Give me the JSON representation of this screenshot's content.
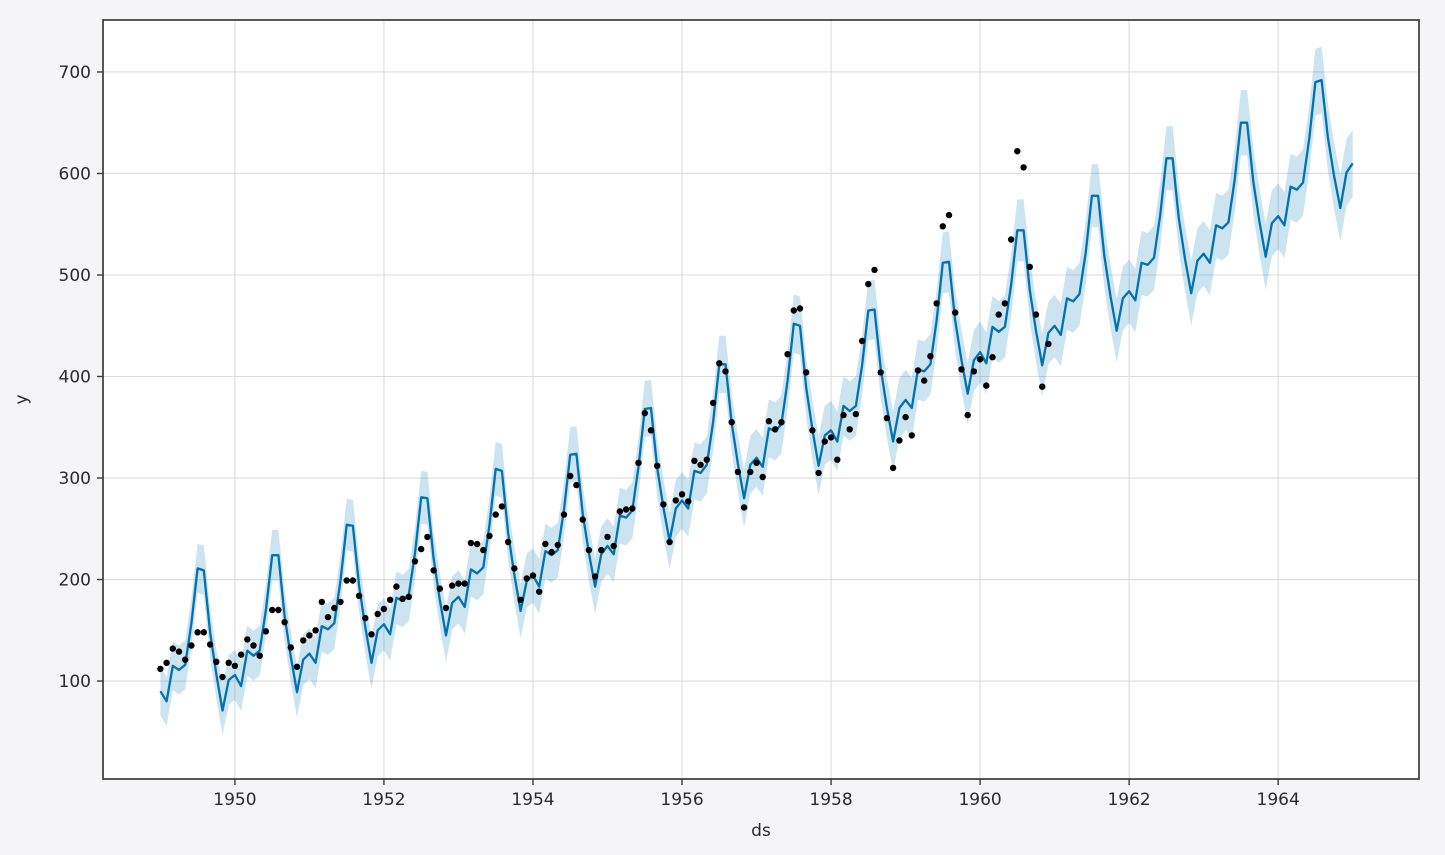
{
  "page": {
    "background_color": "#f5f5f7",
    "plot_background_color": "#ffffff"
  },
  "chart_data": {
    "type": "line",
    "title": "",
    "xlabel": "ds",
    "ylabel": "y",
    "grid": true,
    "legend": "none",
    "xlim": [
      1948.23,
      1965.89
    ],
    "ylim": [
      3.5,
      751.2
    ],
    "x_ticks": [
      1950,
      1952,
      1954,
      1956,
      1958,
      1960,
      1962,
      1964
    ],
    "y_ticks": [
      100,
      200,
      300,
      400,
      500,
      600,
      700
    ],
    "colors": {
      "forecast_line": "#0072B2",
      "uncertainty_band": "#0072B2",
      "uncertainty_band_opacity": 0.2,
      "observed_points": "#000000",
      "gridline": "#dcdcdc",
      "spine": "#3a3a3a",
      "tick_text": "#2b2b2b"
    },
    "series": [
      {
        "name": "observed",
        "style": "scatter",
        "start_year": 1949,
        "start_month": 1,
        "values": [
          112,
          118,
          132,
          129,
          121,
          135,
          148,
          148,
          136,
          119,
          104,
          118,
          115,
          126,
          141,
          135,
          125,
          149,
          170,
          170,
          158,
          133,
          114,
          140,
          145,
          150,
          178,
          163,
          172,
          178,
          199,
          199,
          184,
          162,
          146,
          166,
          171,
          180,
          193,
          181,
          183,
          218,
          230,
          242,
          209,
          191,
          172,
          194,
          196,
          196,
          236,
          235,
          229,
          243,
          264,
          272,
          237,
          211,
          180,
          201,
          204,
          188,
          235,
          227,
          234,
          264,
          302,
          293,
          259,
          229,
          203,
          229,
          242,
          233,
          267,
          269,
          270,
          315,
          364,
          347,
          312,
          274,
          237,
          278,
          284,
          277,
          317,
          313,
          318,
          374,
          413,
          405,
          355,
          306,
          271,
          306,
          315,
          301,
          356,
          348,
          355,
          422,
          465,
          467,
          404,
          347,
          305,
          336,
          340,
          318,
          362,
          348,
          363,
          435,
          491,
          505,
          404,
          359,
          310,
          337,
          360,
          342,
          406,
          396,
          420,
          472,
          548,
          559,
          463,
          407,
          362,
          405,
          417,
          391,
          419,
          461,
          472,
          535,
          622,
          606,
          508,
          461,
          390,
          432
        ]
      },
      {
        "name": "yhat",
        "style": "line",
        "start_year": 1949,
        "start_month": 1,
        "values": [
          90,
          80,
          115,
          111,
          116,
          157,
          211,
          209,
          148,
          107,
          71,
          101,
          106,
          95,
          130,
          125,
          130,
          170,
          224,
          224,
          164,
          124,
          89,
          121,
          127,
          118,
          154,
          151,
          157,
          199,
          254,
          253,
          194,
          153,
          118,
          150,
          156,
          146,
          182,
          179,
          185,
          226,
          281,
          280,
          221,
          180,
          145,
          177,
          183,
          173,
          210,
          206,
          212,
          254,
          309,
          307,
          246,
          205,
          169,
          199,
          204,
          193,
          228,
          224,
          229,
          269,
          323,
          324,
          265,
          226,
          193,
          225,
          233,
          225,
          263,
          261,
          268,
          311,
          368,
          369,
          310,
          271,
          238,
          270,
          278,
          270,
          307,
          305,
          313,
          355,
          412,
          412,
          354,
          314,
          280,
          313,
          320,
          311,
          349,
          346,
          353,
          396,
          452,
          450,
          389,
          348,
          312,
          342,
          347,
          336,
          371,
          366,
          371,
          411,
          465,
          466,
          408,
          369,
          336,
          369,
          377,
          369,
          407,
          405,
          412,
          455,
          512,
          513,
          455,
          416,
          383,
          416,
          424,
          413,
          449,
          444,
          449,
          490,
          544,
          544,
          485,
          445,
          411,
          443,
          450,
          441,
          477,
          474,
          481,
          522,
          578,
          578,
          519,
          479,
          445,
          477,
          484,
          475,
          512,
          510,
          517,
          559,
          615,
          615,
          556,
          516,
          482,
          514,
          521,
          512,
          549,
          546,
          552,
          594,
          650,
          650,
          592,
          552,
          518,
          551,
          558,
          549,
          587,
          584,
          591,
          634,
          690,
          692,
          636,
          598,
          566,
          601,
          610
        ],
        "interval_halfwidth_start": 24,
        "interval_halfwidth_end": 33
      }
    ]
  }
}
